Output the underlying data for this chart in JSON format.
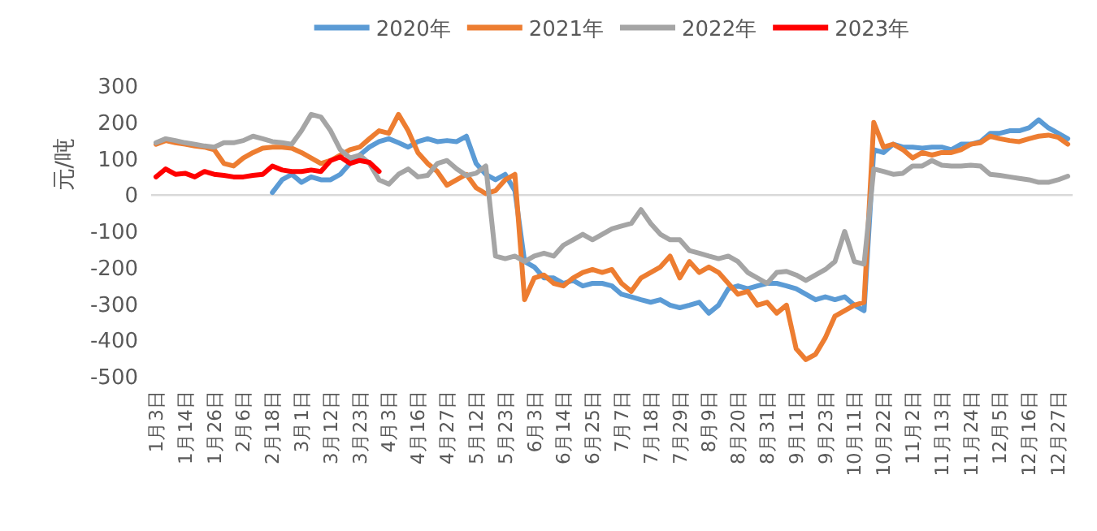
{
  "chart_data": {
    "type": "line",
    "ylabel": "元/吨",
    "ylim": [
      -500,
      300
    ],
    "yticks": [
      -500,
      -400,
      -300,
      -200,
      -100,
      0,
      100,
      200,
      300
    ],
    "legend": "top",
    "categories": [
      "1月3日",
      null,
      null,
      "1月14日",
      null,
      null,
      "1月26日",
      null,
      null,
      "2月6日",
      null,
      null,
      "2月18日",
      null,
      null,
      "3月1日",
      null,
      null,
      "3月12日",
      null,
      null,
      "3月23日",
      null,
      null,
      "4月3日",
      null,
      null,
      "4月16日",
      null,
      null,
      "4月27日",
      null,
      null,
      "5月12日",
      null,
      null,
      "5月23日",
      null,
      null,
      "6月3日",
      null,
      null,
      "6月14日",
      null,
      null,
      "6月25日",
      null,
      null,
      "7月7日",
      null,
      null,
      "7月18日",
      null,
      null,
      "7月29日",
      null,
      null,
      "8月9日",
      null,
      null,
      "8月20日",
      null,
      null,
      "8月31日",
      null,
      null,
      "9月11日",
      null,
      null,
      "9月23日",
      null,
      null,
      "10月11日",
      null,
      null,
      "10月22日",
      null,
      null,
      "11月2日",
      null,
      null,
      "11月13日",
      null,
      null,
      "11月24日",
      null,
      null,
      "12月5日",
      null,
      null,
      "12月16日",
      null,
      null,
      "12月27日",
      null
    ],
    "series": [
      {
        "name": "2020年",
        "color": "#5b9bd5",
        "values": [
          null,
          null,
          null,
          null,
          null,
          null,
          null,
          null,
          null,
          null,
          null,
          null,
          7,
          42,
          57,
          35,
          50,
          42,
          42,
          57,
          87,
          110,
          132,
          147,
          155,
          144,
          132,
          147,
          155,
          147,
          150,
          147,
          162,
          87,
          57,
          42,
          57,
          12,
          -183,
          -198,
          -228,
          -228,
          -243,
          -235,
          -250,
          -243,
          -243,
          -250,
          -273,
          -280,
          -288,
          -295,
          -288,
          -303,
          -310,
          -303,
          -295,
          -325,
          -303,
          -258,
          -250,
          -258,
          -250,
          -243,
          -243,
          -250,
          -258,
          -273,
          -288,
          -280,
          -288,
          -280,
          -303,
          -318,
          125,
          117,
          140,
          132,
          132,
          129,
          132,
          132,
          125,
          140,
          140,
          147,
          170,
          170,
          177,
          177,
          185,
          207,
          185,
          170,
          155
        ]
      },
      {
        "name": "2021年",
        "color": "#ed7d31",
        "values": [
          140,
          150,
          144,
          140,
          135,
          132,
          125,
          87,
          80,
          102,
          117,
          129,
          132,
          132,
          129,
          117,
          102,
          87,
          95,
          110,
          125,
          132,
          155,
          177,
          170,
          222,
          177,
          117,
          87,
          65,
          27,
          42,
          57,
          20,
          4,
          12,
          42,
          57,
          -288,
          -228,
          -220,
          -243,
          -250,
          -228,
          -213,
          -205,
          -213,
          -205,
          -243,
          -265,
          -228,
          -213,
          -198,
          -168,
          -228,
          -183,
          -213,
          -198,
          -213,
          -243,
          -273,
          -265,
          -303,
          -295,
          -325,
          -303,
          -423,
          -453,
          -438,
          -393,
          -333,
          -318,
          -303,
          -295,
          200,
          132,
          140,
          125,
          102,
          117,
          110,
          117,
          117,
          125,
          140,
          144,
          162,
          155,
          150,
          147,
          155,
          162,
          165,
          159,
          140
        ]
      },
      {
        "name": "2022年",
        "color": "#a5a5a5",
        "values": [
          144,
          155,
          150,
          144,
          140,
          135,
          132,
          144,
          144,
          150,
          162,
          155,
          147,
          144,
          140,
          177,
          222,
          215,
          177,
          125,
          102,
          110,
          87,
          42,
          30,
          57,
          72,
          50,
          54,
          87,
          95,
          72,
          54,
          60,
          80,
          -168,
          -175,
          -168,
          -183,
          -168,
          -160,
          -168,
          -138,
          -123,
          -108,
          -123,
          -108,
          -93,
          -85,
          -78,
          -40,
          -78,
          -108,
          -123,
          -123,
          -153,
          -160,
          -168,
          -175,
          -168,
          -183,
          -213,
          -228,
          -243,
          -213,
          -210,
          -220,
          -235,
          -220,
          -205,
          -183,
          -100,
          -183,
          -190,
          72,
          65,
          57,
          60,
          80,
          80,
          95,
          82,
          80,
          80,
          82,
          80,
          57,
          54,
          50,
          46,
          42,
          35,
          35,
          42,
          52
        ]
      },
      {
        "name": "2023年",
        "color": "#ff0000",
        "values": [
          50,
          72,
          57,
          60,
          50,
          65,
          57,
          54,
          50,
          50,
          54,
          57,
          80,
          69,
          65,
          65,
          69,
          65,
          95,
          105,
          87,
          95,
          90,
          65,
          null,
          null,
          null,
          null,
          null,
          null,
          null,
          null,
          null,
          null,
          null,
          null,
          null,
          null,
          null,
          null,
          null,
          null,
          null,
          null,
          null,
          null,
          null,
          null,
          null,
          null,
          null,
          null,
          null,
          null,
          null,
          null,
          null,
          null,
          null,
          null,
          null,
          null,
          null,
          null,
          null,
          null,
          null,
          null,
          null,
          null,
          null,
          null,
          null,
          null,
          null,
          null,
          null,
          null,
          null,
          null,
          null,
          null,
          null,
          null,
          null,
          null,
          null,
          null,
          null,
          null,
          null,
          null,
          null,
          null,
          null
        ]
      }
    ]
  }
}
